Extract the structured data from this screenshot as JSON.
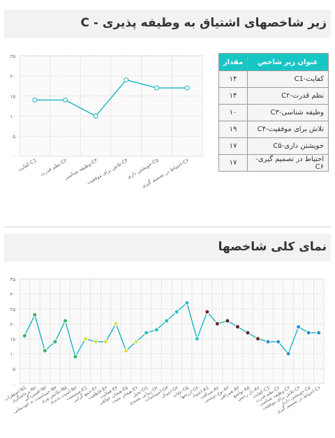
{
  "section1": {
    "title": "زیر شاخصهای اشتیاق به وطیفه پذیری - C"
  },
  "section2": {
    "title": "نمای کلی شاخصها"
  },
  "table": {
    "headers": [
      "عنوان زیر شاخص",
      "مقدار"
    ],
    "rows": [
      {
        "name": "کفایت-C1",
        "value": "۱۴"
      },
      {
        "name": "نظم قدرت-C۲",
        "value": "۱۴"
      },
      {
        "name": "وظیفه شناسی-C۳",
        "value": "۱۰"
      },
      {
        "name": "تلاش برای موفقیت-C۴",
        "value": "۱۹"
      },
      {
        "name": "خویشتن داری-C۵",
        "value": "۱۷"
      },
      {
        "name": "احتیاط در تصمیم گیری-C۶",
        "value": "۱۷"
      }
    ]
  },
  "chart_data": [
    {
      "type": "line",
      "ylim": [
        0,
        25
      ],
      "yticks": [
        "۰",
        "۵",
        "۱۰",
        "۱۵",
        "۲۰",
        "۲۵"
      ],
      "categories": [
        "کفایت-C1",
        "نظم قدرت-C۲",
        "وظیفه شناسی-C۳",
        "تلاش برای موفقیت-C۴",
        "خویشتن داری-C۵",
        "احتیاط در تصمیم گیری-C۶"
      ],
      "values": [
        14,
        14,
        10,
        19,
        17,
        17
      ],
      "colors": {
        "line": "#19b5c0",
        "marker_fill": "#ffffff",
        "marker_stroke": "#19b5c0"
      }
    },
    {
      "type": "line",
      "ylim": [
        0,
        35
      ],
      "yticks": [
        "۰",
        "۵",
        "۱۰",
        "۱۵",
        "۲۰",
        "۲۵",
        "۳۰",
        "۳۵"
      ],
      "categories": [
        "اضطراب-N1",
        "پرخاشگری-N۲",
        "افسردگی-N۳",
        "حساسیت به خودنمایی-N۴",
        "تکانش وری-N۵",
        "آسیب پذیری-N۶",
        "صمیمیت-E1",
        "جمع گرایی-E۲",
        "قاطعیت-E۳",
        "فعالیت-E۴",
        "هیجان خواهی-E۵",
        "هیجان مثبت-E۶",
        "تخیل-O1",
        "زیبایی پسندی-O۲",
        "احساسات-O۳",
        "اعمال-O۴",
        "عقاید-O۵",
        "ارزشها-O۶",
        "اعتماد-A1",
        "صداقت-A۲",
        "نوع دوستی-A۳",
        "همراهی-A۴",
        "تواضع-A۵",
        "دل رحمی-A۶",
        "کفایت-C1",
        "نظم قدرت-C۲",
        "وظیفه شناسی-C۳",
        "تلاش برای موفقیت-C۴",
        "خویشتن داری-C۵",
        "احتیاط در تصمیم گیری-C۶"
      ],
      "values": [
        16,
        23,
        11,
        14,
        21,
        9,
        15,
        14,
        14,
        20,
        11,
        14,
        17,
        18,
        21,
        24,
        27,
        15,
        24,
        20,
        21,
        19,
        17,
        15,
        14,
        14,
        10,
        19,
        17,
        17
      ],
      "point_colors": [
        "#3cb371",
        "#3cb371",
        "#3cb371",
        "#3cb371",
        "#3cb371",
        "#3cb371",
        "#d6e342",
        "#d6e342",
        "#d6e342",
        "#d6e342",
        "#d6e342",
        "#d6e342",
        "#2bbfc0",
        "#2bbfc0",
        "#2bbfc0",
        "#2bbfc0",
        "#2bbfc0",
        "#2bbfc0",
        "#8b1a1a",
        "#5a2a2a",
        "#5a2a2a",
        "#5a2a2a",
        "#5a2a2a",
        "#5a2a2a",
        "#2a8fd0",
        "#2a8fd0",
        "#2a8fd0",
        "#2a8fd0",
        "#2a8fd0",
        "#2a8fd0"
      ],
      "colors": {
        "line": "#19b5c0"
      }
    }
  ]
}
